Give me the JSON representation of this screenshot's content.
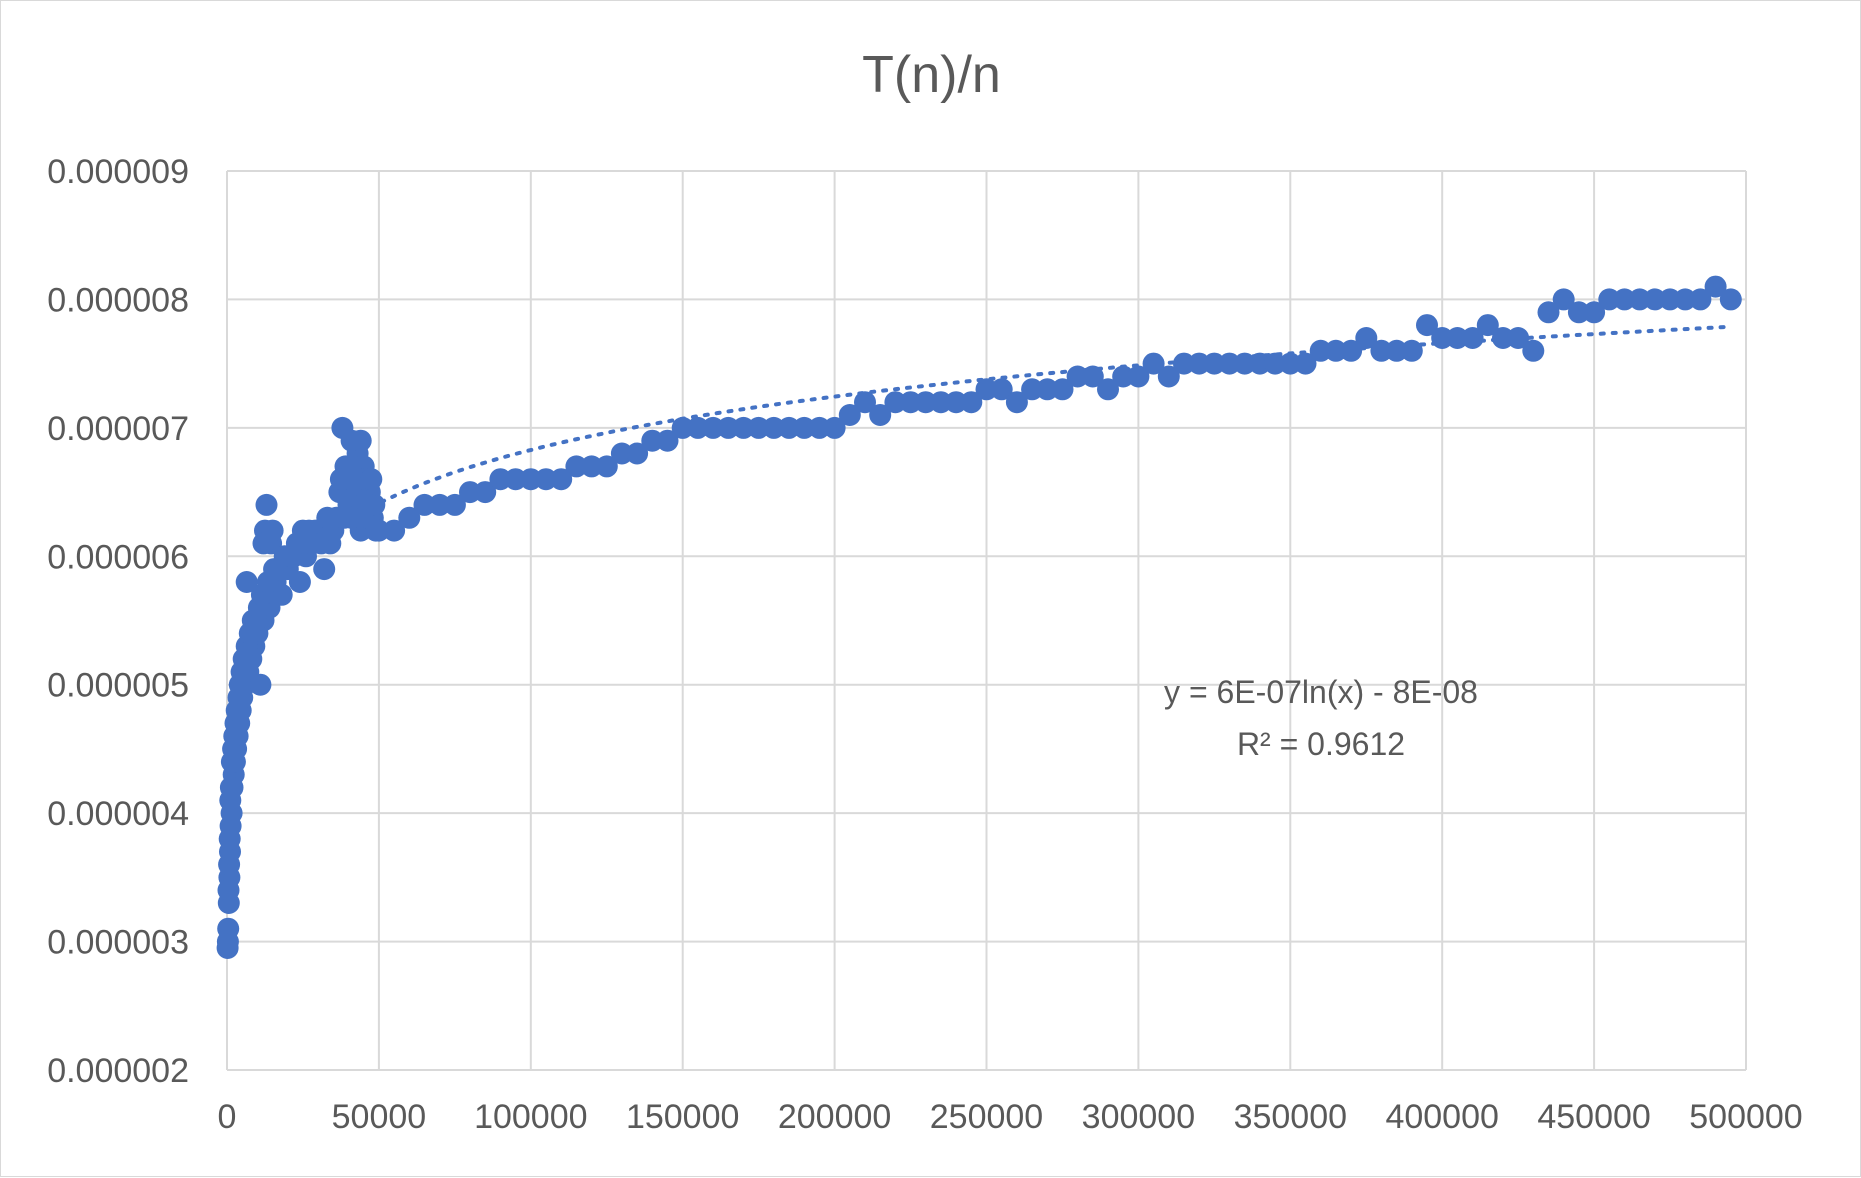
{
  "chart_data": {
    "type": "scatter",
    "title": "T(n)/n",
    "xlabel": "",
    "ylabel": "",
    "xlim": [
      0,
      500000
    ],
    "ylim": [
      2e-06,
      9e-06
    ],
    "x_ticks": [
      "0",
      "50000",
      "100000",
      "150000",
      "200000",
      "250000",
      "300000",
      "350000",
      "400000",
      "450000",
      "500000"
    ],
    "y_ticks": [
      "0.000002",
      "0.000003",
      "0.000004",
      "0.000005",
      "0.000006",
      "0.000007",
      "0.000008",
      "0.000009"
    ],
    "grid": true,
    "legend": "none",
    "marker_color": "#4472c4",
    "trendline": {
      "type": "logarithmic",
      "a": 6e-07,
      "b": -8e-08,
      "equation": "y = 6E-07ln(x) - 8E-08",
      "r_squared": "R² = 0.9612"
    },
    "series": [
      {
        "x": [
          200,
          400,
          600,
          800,
          1000,
          1200,
          1500,
          1800,
          2200,
          2600,
          3000,
          3500,
          4000,
          4500,
          5000,
          6000,
          7000,
          8000,
          9000,
          10000,
          11000,
          12000,
          13000,
          14000,
          15000,
          16000,
          18000,
          20000,
          22000,
          24000,
          26000,
          28000,
          30000,
          32000,
          34000,
          36000,
          37000,
          38000,
          39000,
          40000,
          41000,
          42000,
          43000,
          44000,
          45000,
          46000,
          47000,
          48000,
          49000,
          50000,
          55000,
          60000,
          65000,
          70000,
          75000,
          80000,
          85000,
          90000,
          95000,
          100000,
          105000,
          110000,
          115000,
          120000,
          125000,
          130000,
          135000,
          140000,
          145000,
          150000,
          155000,
          160000,
          165000,
          170000,
          175000,
          180000,
          185000,
          190000,
          195000,
          200000,
          205000,
          210000,
          215000,
          220000,
          225000,
          230000,
          235000,
          240000,
          245000,
          250000,
          255000,
          260000,
          265000,
          270000,
          275000,
          280000,
          285000,
          290000,
          295000,
          300000,
          305000,
          310000,
          315000,
          320000,
          325000,
          330000,
          335000,
          340000,
          345000,
          350000,
          355000,
          360000,
          365000,
          370000,
          375000,
          380000,
          385000,
          390000,
          395000,
          400000,
          405000,
          410000,
          415000,
          420000,
          425000,
          430000,
          435000,
          440000,
          445000,
          450000,
          455000,
          460000,
          465000,
          470000,
          475000,
          480000,
          485000,
          490000,
          495000,
          300,
          500,
          700,
          900,
          1100,
          1300,
          1600,
          2000,
          2400,
          2800,
          3200,
          3800,
          4200,
          4800,
          5500,
          6500,
          7500,
          8500,
          9500,
          10500,
          11500,
          12500,
          13500,
          14500,
          15500,
          17000,
          19000,
          21000,
          23000,
          25000,
          27000,
          29000,
          31000,
          33000,
          35000,
          37500,
          38500,
          39500,
          40500,
          41500,
          42500,
          43500,
          44500,
          45500,
          46500,
          47500,
          48500,
          38000,
          41000,
          44000,
          47000,
          12000,
          15000,
          28000,
          6500
        ],
        "y": [
          2.95e-06,
          3.1e-06,
          3.3e-06,
          3.5e-06,
          3.7e-06,
          3.9e-06,
          4e-06,
          4.2e-06,
          4.3e-06,
          4.4e-06,
          4.5e-06,
          4.6e-06,
          4.7e-06,
          4.8e-06,
          4.9e-06,
          5e-06,
          5.1e-06,
          5.2e-06,
          5.3e-06,
          5.4e-06,
          5e-06,
          5.5e-06,
          6.4e-06,
          5.6e-06,
          5.7e-06,
          5.8e-06,
          5.7e-06,
          5.9e-06,
          6e-06,
          5.8e-06,
          6e-06,
          6.1e-06,
          6.2e-06,
          5.9e-06,
          6.1e-06,
          6.3e-06,
          6.5e-06,
          7e-06,
          6.7e-06,
          6.4e-06,
          6.9e-06,
          6.6e-06,
          6.8e-06,
          6.2e-06,
          6.7e-06,
          6.4e-06,
          6.5e-06,
          6.3e-06,
          6.2e-06,
          6.2e-06,
          6.2e-06,
          6.3e-06,
          6.4e-06,
          6.4e-06,
          6.4e-06,
          6.5e-06,
          6.5e-06,
          6.6e-06,
          6.6e-06,
          6.6e-06,
          6.6e-06,
          6.6e-06,
          6.7e-06,
          6.7e-06,
          6.7e-06,
          6.8e-06,
          6.8e-06,
          6.9e-06,
          6.9e-06,
          7e-06,
          7e-06,
          7e-06,
          7e-06,
          7e-06,
          7e-06,
          7e-06,
          7e-06,
          7e-06,
          7e-06,
          7e-06,
          7.1e-06,
          7.2e-06,
          7.1e-06,
          7.2e-06,
          7.2e-06,
          7.2e-06,
          7.2e-06,
          7.2e-06,
          7.2e-06,
          7.3e-06,
          7.3e-06,
          7.2e-06,
          7.3e-06,
          7.3e-06,
          7.3e-06,
          7.4e-06,
          7.4e-06,
          7.3e-06,
          7.4e-06,
          7.4e-06,
          7.5e-06,
          7.4e-06,
          7.5e-06,
          7.5e-06,
          7.5e-06,
          7.5e-06,
          7.5e-06,
          7.5e-06,
          7.5e-06,
          7.5e-06,
          7.5e-06,
          7.6e-06,
          7.6e-06,
          7.6e-06,
          7.7e-06,
          7.6e-06,
          7.6e-06,
          7.6e-06,
          7.8e-06,
          7.7e-06,
          7.7e-06,
          7.7e-06,
          7.8e-06,
          7.7e-06,
          7.7e-06,
          7.6e-06,
          7.9e-06,
          8e-06,
          7.9e-06,
          7.9e-06,
          8e-06,
          8e-06,
          8e-06,
          8e-06,
          8e-06,
          8e-06,
          8e-06,
          8.1e-06,
          8e-06,
          3e-06,
          3.4e-06,
          3.6e-06,
          3.8e-06,
          4.1e-06,
          4.2e-06,
          4.4e-06,
          4.5e-06,
          4.6e-06,
          4.7e-06,
          4.8e-06,
          4.9e-06,
          5e-06,
          5.1e-06,
          5.2e-06,
          5.3e-06,
          5.4e-06,
          5.5e-06,
          5.5e-06,
          5.6e-06,
          5.7e-06,
          6.2e-06,
          5.8e-06,
          6.1e-06,
          5.9e-06,
          5.9e-06,
          6e-06,
          6e-06,
          6.1e-06,
          6.2e-06,
          6.2e-06,
          6.2e-06,
          6.1e-06,
          6.3e-06,
          6.2e-06,
          6.6e-06,
          6.3e-06,
          6.6e-06,
          6.5e-06,
          6.7e-06,
          6.5e-06,
          6.6e-06,
          6.4e-06,
          6.6e-06,
          6.3e-06,
          6.6e-06,
          6.4e-06,
          6.6e-06,
          6.3e-06,
          6.9e-06,
          6.4e-06,
          6.1e-06,
          6.2e-06,
          6.1e-06,
          5.8e-06
        ]
      }
    ]
  }
}
